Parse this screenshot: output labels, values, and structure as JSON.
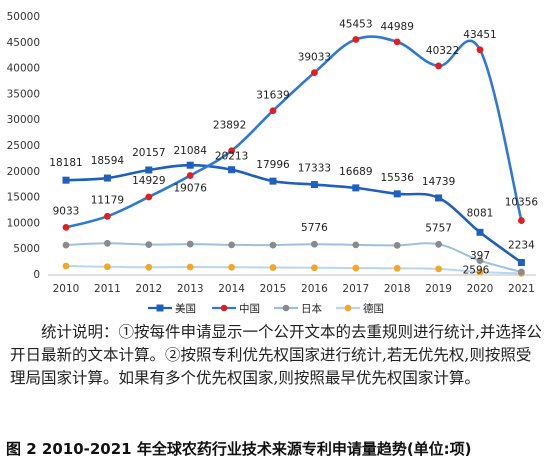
{
  "chart_data": {
    "type": "line",
    "title": "",
    "xlabel": "",
    "ylabel": "",
    "ylim": [
      0,
      50000
    ],
    "y_ticks": [
      "0",
      "5000",
      "10000",
      "15000",
      "20000",
      "25000",
      "30000",
      "35000",
      "40000",
      "45000",
      "50000"
    ],
    "categories": [
      "2010",
      "2011",
      "2012",
      "2013",
      "2014",
      "2015",
      "2016",
      "2017",
      "2018",
      "2019",
      "2020",
      "2021"
    ],
    "grid": false,
    "legend_position": "bottom",
    "series": [
      {
        "name": "美国",
        "color": "#1f5fbf",
        "marker": "square",
        "values": [
          18181,
          18594,
          20157,
          21084,
          20213,
          17996,
          17333,
          16689,
          15536,
          14739,
          8081,
          2234
        ],
        "labels": [
          "18181",
          "18594",
          "20157",
          "21084",
          "20213",
          "17996",
          "17333",
          "16689",
          "15536",
          "14739",
          "8081",
          "2234"
        ]
      },
      {
        "name": "中国",
        "color": "#2f78d4",
        "marker_color": "#e02020",
        "marker": "circle",
        "values": [
          9033,
          11179,
          14929,
          19076,
          23892,
          31639,
          39033,
          45453,
          44989,
          40322,
          43451,
          10356
        ],
        "labels": [
          "9033",
          "11179",
          "14929",
          "19076",
          "23892",
          "31639",
          "39033",
          "45453",
          "44989",
          "40322",
          "43451",
          "10356"
        ]
      },
      {
        "name": "日本",
        "color": "#9ebfe0",
        "marker_color": "#8a8a8a",
        "marker": "circle",
        "values": [
          5600,
          5950,
          5700,
          5800,
          5650,
          5600,
          5776,
          5650,
          5550,
          5757,
          2596,
          380
        ],
        "labels": [
          "",
          "",
          "",
          "",
          "",
          "",
          "5776",
          "",
          "",
          "5757",
          "2596",
          ""
        ]
      },
      {
        "name": "德国",
        "color": "#b8d6ee",
        "marker_color": "#f5a623",
        "marker": "circle",
        "values": [
          1550,
          1400,
          1300,
          1350,
          1300,
          1250,
          1200,
          1150,
          1100,
          987,
          397,
          120
        ],
        "labels": [
          "",
          "",
          "",
          "",
          "",
          "",
          "",
          "",
          "",
          "",
          "397",
          ""
        ]
      }
    ]
  },
  "note": "统计说明：①按每件申请显示一个公开文本的去重规则进行统计,并选择公开日最新的文本计算。②按照专利优先权国家进行统计,若无优先权,则按照受理局国家计算。如果有多个优先权国家,则按照最早优先权国家计算。",
  "caption": "图 2   2010-2021 年全球农药行业技术来源专利申请量趋势(单位:项)"
}
